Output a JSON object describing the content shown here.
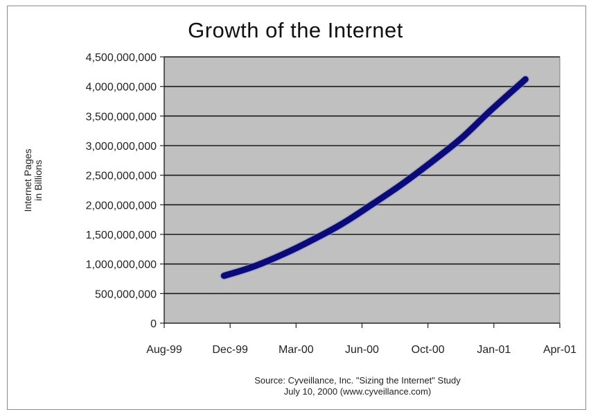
{
  "chart_data": {
    "type": "line",
    "title": "Growth of the Internet",
    "ylabel_lines": [
      "Internet Pages",
      "in Billions"
    ],
    "xlabel": "",
    "x_tick_labels": [
      "Aug-99",
      "Dec-99",
      "Mar-00",
      "Jun-00",
      "Oct-00",
      "Jan-01",
      "Apr-01"
    ],
    "y_tick_labels": [
      "0",
      "500,000,000",
      "1,000,000,000",
      "1,500,000,000",
      "2,000,000,000",
      "2,500,000,000",
      "3,000,000,000",
      "3,500,000,000",
      "4,000,000,000",
      "4,500,000,000"
    ],
    "ylim": [
      0,
      4500000000
    ],
    "xlim": [
      "1999-08-01",
      "2001-04-01"
    ],
    "grid": true,
    "legend": "none",
    "series": [
      {
        "color": "#0b0b78",
        "points": [
          {
            "x": "1999-11-01",
            "y": 800000000
          },
          {
            "x": "1999-12-15",
            "y": 950000000
          },
          {
            "x": "2000-02-01",
            "y": 1170000000
          },
          {
            "x": "2000-03-15",
            "y": 1400000000
          },
          {
            "x": "2000-05-01",
            "y": 1680000000
          },
          {
            "x": "2000-06-15",
            "y": 2000000000
          },
          {
            "x": "2000-08-01",
            "y": 2350000000
          },
          {
            "x": "2000-09-15",
            "y": 2720000000
          },
          {
            "x": "2000-11-01",
            "y": 3130000000
          },
          {
            "x": "2000-12-15",
            "y": 3590000000
          },
          {
            "x": "2001-02-07",
            "y": 4120000000
          }
        ]
      }
    ],
    "plot_background": "#c0c0c0",
    "source_lines": [
      "Source: Cyveillance, Inc. \"Sizing the Internet\" Study",
      "July 10, 2000 (www.cyveillance.com)"
    ]
  }
}
